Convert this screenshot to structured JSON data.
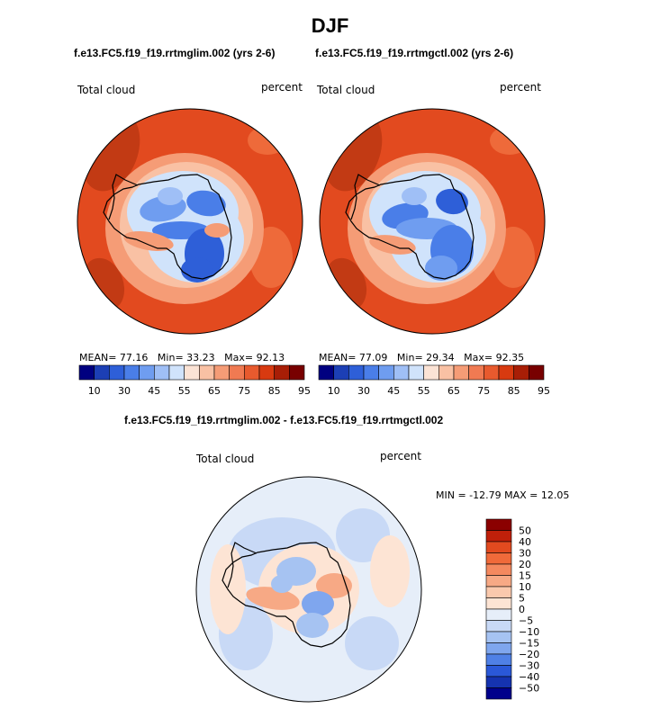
{
  "chart_data": [
    {
      "type": "heatmap",
      "title": "DJF",
      "subtitle": "f.e13.FC5.f19_f19.rrtmglim.002 (yrs 2-6)",
      "left_label": "Total cloud",
      "right_label": "percent",
      "projection": "south-polar-stereographic",
      "stats": {
        "mean_label": "MEAN=",
        "mean": "77.16",
        "min_label": "Min=",
        "min": "33.23",
        "max_label": "Max=",
        "max": "92.13"
      },
      "colorbar": {
        "orientation": "horizontal",
        "tick_labels": [
          "10",
          "30",
          "45",
          "55",
          "65",
          "75",
          "85",
          "95"
        ],
        "colors": [
          "#000080",
          "#1c3fb5",
          "#2e5fd8",
          "#4a7ee8",
          "#6f9df0",
          "#9fbff6",
          "#d0e3fb",
          "#fbe3d5",
          "#f9c1a4",
          "#f59c76",
          "#f07a52",
          "#e85a2e",
          "#d83a10",
          "#a81e06",
          "#780000"
        ]
      }
    },
    {
      "type": "heatmap",
      "subtitle": "f.e13.FC5.f19_f19.rrtmgctl.002 (yrs 2-6)",
      "left_label": "Total cloud",
      "right_label": "percent",
      "projection": "south-polar-stereographic",
      "stats": {
        "mean_label": "MEAN=",
        "mean": "77.09",
        "min_label": "Min=",
        "min": "29.34",
        "max_label": "Max=",
        "max": "92.35"
      },
      "colorbar": {
        "orientation": "horizontal",
        "tick_labels": [
          "10",
          "30",
          "45",
          "55",
          "65",
          "75",
          "85",
          "95"
        ],
        "colors": [
          "#000080",
          "#1c3fb5",
          "#2e5fd8",
          "#4a7ee8",
          "#6f9df0",
          "#9fbff6",
          "#d0e3fb",
          "#fbe3d5",
          "#f9c1a4",
          "#f59c76",
          "#f07a52",
          "#e85a2e",
          "#d83a10",
          "#a81e06",
          "#780000"
        ]
      }
    },
    {
      "type": "heatmap",
      "subtitle": "f.e13.FC5.f19_f19.rrtmglim.002 - f.e13.FC5.f19_f19.rrtmgctl.002",
      "left_label": "Total cloud",
      "right_label": "percent",
      "projection": "south-polar-stereographic",
      "stats": {
        "text": "MIN = -12.79 MAX =  12.05"
      },
      "colorbar": {
        "orientation": "vertical",
        "tick_labels": [
          "50",
          "40",
          "30",
          "20",
          "15",
          "10",
          "5",
          "0",
          "−5",
          "−10",
          "−15",
          "−20",
          "−30",
          "−40",
          "−50"
        ],
        "colors": [
          "#8b0000",
          "#c0200a",
          "#e24a1f",
          "#f06a3a",
          "#f4895f",
          "#f7a985",
          "#fac9ad",
          "#fde4d4",
          "#e6eef9",
          "#c8d9f6",
          "#a6c3f2",
          "#7fa6ee",
          "#4f80e6",
          "#2a58d8",
          "#1533b0",
          "#00008b"
        ]
      }
    }
  ]
}
